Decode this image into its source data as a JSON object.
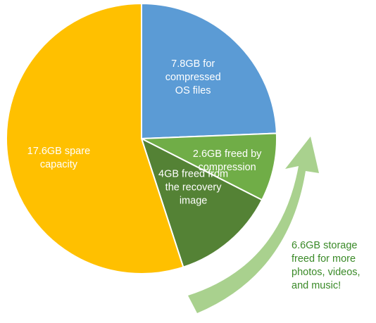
{
  "chart_data": {
    "type": "pie",
    "start_angle_deg": 0,
    "direction": "clockwise",
    "slices": [
      {
        "label": "7.8GB for compressed OS files",
        "label_lines": [
          "7.8GB for",
          "compressed",
          "OS files"
        ],
        "value": 7.8,
        "color": "#5B9BD5"
      },
      {
        "label": "2.6GB freed by compression",
        "label_lines": [
          "2.6GB freed by",
          "compression"
        ],
        "value": 2.6,
        "color": "#70AD47"
      },
      {
        "label": "4GB freed from the recovery image",
        "label_lines": [
          "4GB freed from",
          "the recovery",
          "image"
        ],
        "value": 4,
        "color": "#548235"
      },
      {
        "label": "17.6GB spare capacity",
        "label_lines": [
          "17.6GB spare",
          "capacity"
        ],
        "value": 17.6,
        "color": "#FFC000"
      }
    ]
  },
  "annotation": {
    "text": "6.6GB storage\nfreed for more\nphotos, videos,\nand music!",
    "color": "#3a8a28"
  },
  "arrow": {
    "icon": "curved-arrow-icon",
    "color": "#A9D18E"
  }
}
